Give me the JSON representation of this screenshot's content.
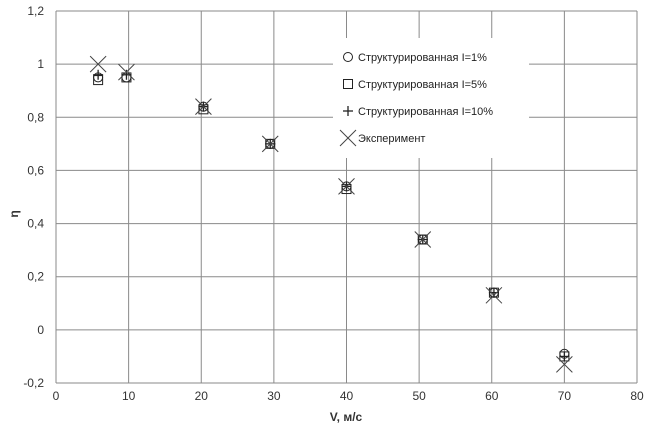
{
  "chart_data": {
    "type": "scatter",
    "title": "",
    "xlabel": "V, м/с",
    "ylabel": "η",
    "xlim": [
      0,
      80
    ],
    "ylim": [
      -0.2,
      1.2
    ],
    "x_ticks": [
      0,
      10,
      20,
      30,
      40,
      50,
      60,
      70,
      80
    ],
    "y_ticks": [
      -0.2,
      0,
      0.2,
      0.4,
      0.6,
      0.8,
      1,
      1.2
    ],
    "x_tick_labels": [
      "0",
      "10",
      "20",
      "30",
      "40",
      "50",
      "60",
      "70",
      "80"
    ],
    "y_tick_labels": [
      "-0,2",
      "0",
      "0,2",
      "0,4",
      "0,6",
      "0,8",
      "1",
      "1,2"
    ],
    "grid": true,
    "legend_position": "top-right",
    "series": [
      {
        "name": "Структурированная I=1%",
        "marker": "circle",
        "x": [
          5.8,
          9.7,
          20.3,
          29.5,
          40.0,
          50.5,
          60.3,
          70.0
        ],
        "y": [
          0.95,
          0.95,
          0.84,
          0.7,
          0.54,
          0.34,
          0.14,
          -0.09
        ]
      },
      {
        "name": "Структурированная I=5%",
        "marker": "square",
        "x": [
          5.8,
          9.7,
          20.3,
          29.5,
          40.0,
          50.5,
          60.3,
          70.0
        ],
        "y": [
          0.94,
          0.95,
          0.83,
          0.7,
          0.53,
          0.34,
          0.14,
          -0.1
        ]
      },
      {
        "name": "Структурированная I=10%",
        "marker": "plus",
        "x": [
          5.8,
          9.7,
          20.3,
          29.5,
          40.0,
          50.5,
          60.3,
          70.0
        ],
        "y": [
          0.96,
          0.96,
          0.84,
          0.7,
          0.54,
          0.34,
          0.14,
          -0.1
        ]
      },
      {
        "name": "Эксперимент",
        "marker": "x",
        "x": [
          5.8,
          9.7,
          20.3,
          29.5,
          40.0,
          50.5,
          60.3,
          70.0
        ],
        "y": [
          1.0,
          0.97,
          0.84,
          0.7,
          0.54,
          0.34,
          0.13,
          -0.13
        ]
      }
    ]
  }
}
